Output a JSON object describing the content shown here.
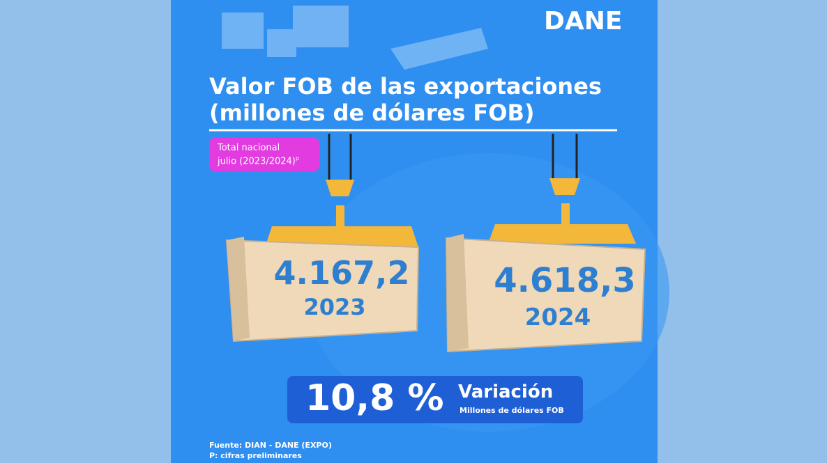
{
  "header": {
    "logo": "DANE"
  },
  "title": {
    "line1": "Valor FOB de las exportaciones",
    "line2": "(millones de dólares FOB)"
  },
  "badge": {
    "line1": "Total nacional",
    "line2": "julio (2023/2024)",
    "superscript": "p"
  },
  "containers": [
    {
      "value": "4.167,2",
      "year": "2023"
    },
    {
      "value": "4.618,3",
      "year": "2024"
    }
  ],
  "variation": {
    "value": "10,8 %",
    "label": "Variación",
    "unit": "Millones de dólares FOB"
  },
  "footer": {
    "source": "Fuente: DIAN - DANE (EXPO)",
    "note": "P: cifras preliminares"
  }
}
